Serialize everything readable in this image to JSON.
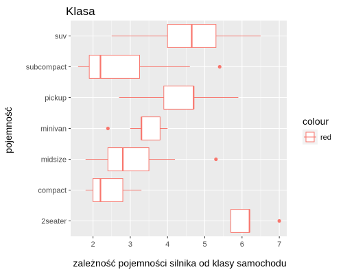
{
  "chart_data": {
    "type": "boxplot",
    "orientation": "horizontal",
    "title": "Klasa",
    "xlabel": "zależność pojemności silnika od klasy samochodu",
    "ylabel": "pojemność",
    "xlim": [
      1.4,
      7.2
    ],
    "x_ticks": [
      2,
      3,
      4,
      5,
      6,
      7
    ],
    "grid": true,
    "legend": {
      "title": "colour",
      "position": "right",
      "entries": [
        {
          "label": "red",
          "color": "#F8766D"
        }
      ]
    },
    "box_color": "#F8766D",
    "panel_background": "#EBEBEB",
    "categories": [
      "2seater",
      "compact",
      "midsize",
      "minivan",
      "pickup",
      "subcompact",
      "suv"
    ],
    "boxes": [
      {
        "category": "2seater",
        "min": 5.7,
        "q1": 5.7,
        "median": 6.2,
        "q3": 6.2,
        "max": 6.2,
        "outliers": [
          7.0
        ]
      },
      {
        "category": "compact",
        "min": 1.8,
        "q1": 2.0,
        "median": 2.2,
        "q3": 2.8,
        "max": 3.3,
        "outliers": []
      },
      {
        "category": "midsize",
        "min": 1.8,
        "q1": 2.4,
        "median": 2.8,
        "q3": 3.5,
        "max": 4.2,
        "outliers": [
          5.3
        ]
      },
      {
        "category": "minivan",
        "min": 3.0,
        "q1": 3.3,
        "median": 3.3,
        "q3": 3.8,
        "max": 4.0,
        "outliers": [
          2.4
        ]
      },
      {
        "category": "pickup",
        "min": 2.7,
        "q1": 3.9,
        "median": 4.7,
        "q3": 4.7,
        "max": 5.9,
        "outliers": []
      },
      {
        "category": "subcompact",
        "min": 1.6,
        "q1": 1.9,
        "median": 2.2,
        "q3": 3.25,
        "max": 4.6,
        "outliers": [
          5.4
        ]
      },
      {
        "category": "suv",
        "min": 2.5,
        "q1": 4.0,
        "median": 4.65,
        "q3": 5.3,
        "max": 6.5,
        "outliers": []
      }
    ]
  }
}
